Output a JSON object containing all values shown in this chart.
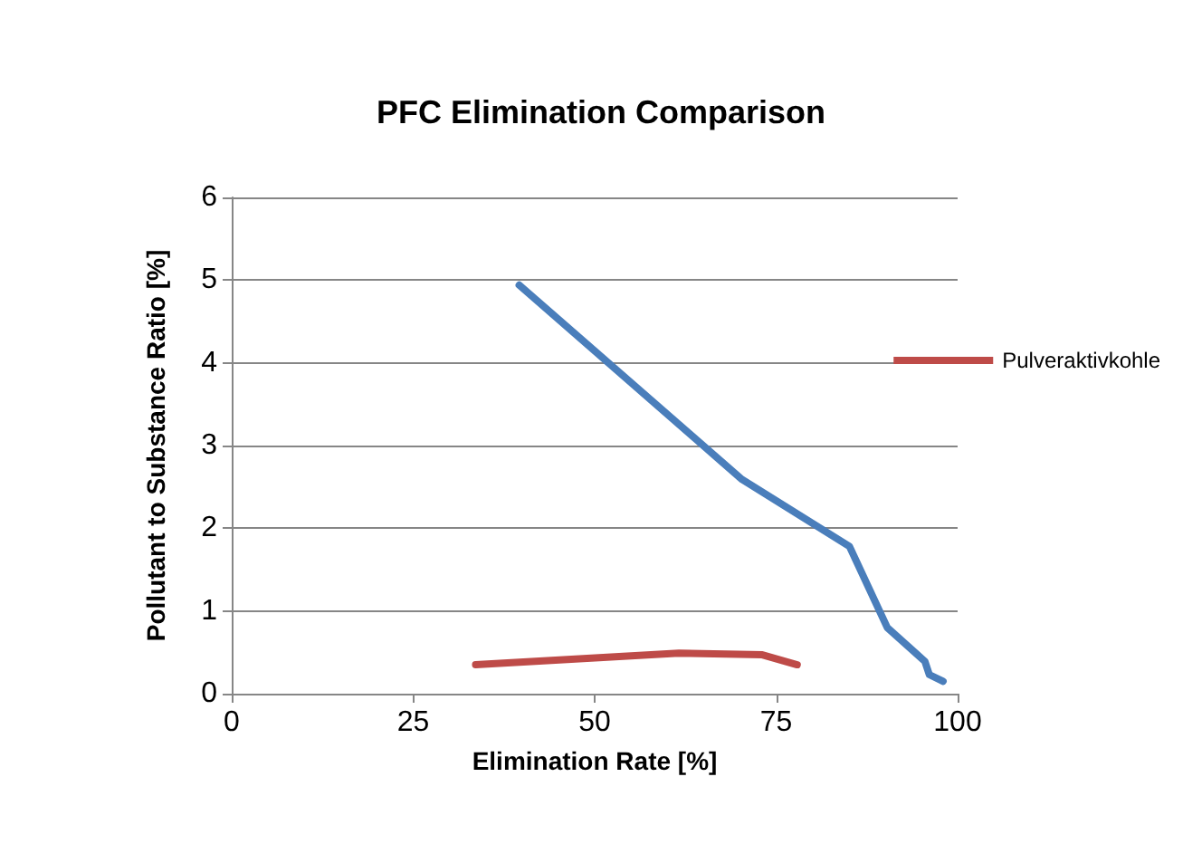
{
  "chart_data": {
    "type": "line",
    "title": "PFC Elimination Comparison",
    "xlabel": "Elimination Rate [%]",
    "ylabel": "Pollutant to Substance Ratio [%]",
    "series": [
      {
        "color": "#4a7ebb",
        "x": [
          39.6,
          70.3,
          85.1,
          90.3,
          95.5,
          96.1,
          98
        ],
        "values": [
          4.94,
          2.59,
          1.78,
          0.8,
          0.39,
          0.23,
          0.15
        ]
      },
      {
        "name": "Pulveraktivkohle",
        "color": "#be4b48",
        "x": [
          33.6,
          61.6,
          73.1,
          77.9
        ],
        "values": [
          0.35,
          0.49,
          0.47,
          0.35
        ]
      }
    ],
    "xlim": [
      0,
      100
    ],
    "xticks": [
      0,
      25,
      50,
      75,
      100
    ],
    "ylim": [
      0,
      6
    ],
    "yticks": [
      0,
      1,
      2,
      3,
      4,
      5,
      6
    ],
    "grid": "y",
    "legend": "right",
    "marker": "none",
    "line_style": "solid"
  }
}
